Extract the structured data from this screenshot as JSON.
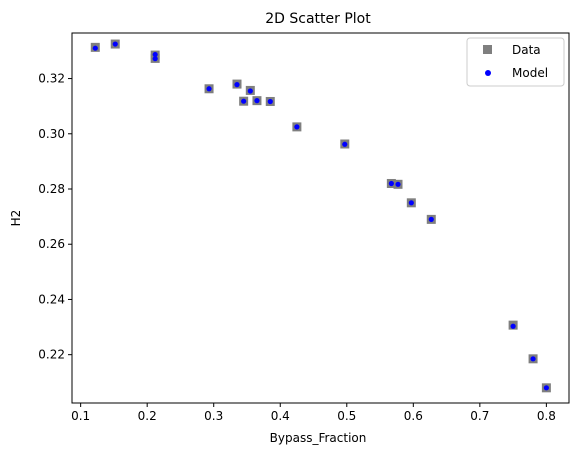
{
  "chart_data": {
    "type": "scatter",
    "title": "2D Scatter Plot",
    "xlabel": "Bypass_Fraction",
    "ylabel": "H2",
    "xlim": [
      0.087,
      0.834
    ],
    "ylim": [
      0.2025,
      0.3365
    ],
    "x_ticks": [
      0.1,
      0.2,
      0.3,
      0.4,
      0.5,
      0.6,
      0.7,
      0.8
    ],
    "x_tick_labels": [
      "0.1",
      "0.2",
      "0.3",
      "0.4",
      "0.5",
      "0.6",
      "0.7",
      "0.8"
    ],
    "y_ticks": [
      0.22,
      0.24,
      0.26,
      0.28,
      0.3,
      0.32
    ],
    "y_tick_labels": [
      "0.22",
      "0.24",
      "0.26",
      "0.28",
      "0.30",
      "0.32"
    ],
    "grid": false,
    "legend_position": "top-right",
    "series": [
      {
        "name": "Data",
        "marker": "square",
        "color": "#7f7f7f",
        "points": [
          [
            0.122,
            0.3313
          ],
          [
            0.152,
            0.3325
          ],
          [
            0.212,
            0.3285
          ],
          [
            0.212,
            0.3273
          ],
          [
            0.293,
            0.3163
          ],
          [
            0.335,
            0.318
          ],
          [
            0.345,
            0.3118
          ],
          [
            0.355,
            0.3157
          ],
          [
            0.365,
            0.312
          ],
          [
            0.385,
            0.3117
          ],
          [
            0.425,
            0.3025
          ],
          [
            0.497,
            0.2963
          ],
          [
            0.567,
            0.282
          ],
          [
            0.577,
            0.2817
          ],
          [
            0.597,
            0.275
          ],
          [
            0.627,
            0.269
          ],
          [
            0.75,
            0.2307
          ],
          [
            0.78,
            0.2185
          ],
          [
            0.8,
            0.208
          ]
        ]
      },
      {
        "name": "Model",
        "marker": "circle",
        "color": "#0000ff",
        "points": [
          [
            0.122,
            0.331
          ],
          [
            0.152,
            0.3325
          ],
          [
            0.212,
            0.3287
          ],
          [
            0.212,
            0.3272
          ],
          [
            0.293,
            0.3163
          ],
          [
            0.335,
            0.3178
          ],
          [
            0.345,
            0.3118
          ],
          [
            0.355,
            0.3155
          ],
          [
            0.365,
            0.312
          ],
          [
            0.385,
            0.3117
          ],
          [
            0.425,
            0.3025
          ],
          [
            0.497,
            0.2962
          ],
          [
            0.567,
            0.282
          ],
          [
            0.577,
            0.2817
          ],
          [
            0.597,
            0.275
          ],
          [
            0.627,
            0.269
          ],
          [
            0.75,
            0.2303
          ],
          [
            0.78,
            0.2185
          ],
          [
            0.8,
            0.208
          ]
        ]
      }
    ]
  }
}
